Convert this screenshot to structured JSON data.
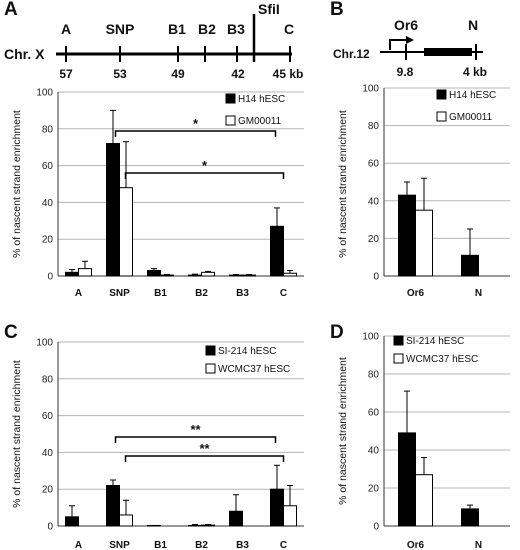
{
  "map_A": {
    "letter": "A",
    "chromosome": "Chr. X",
    "elements": [
      "A",
      "SNP",
      "B1",
      "B2",
      "B3",
      "SfiI",
      "C"
    ],
    "positions": [
      "57",
      "53",
      "49",
      "42",
      "45 kb"
    ]
  },
  "map_B": {
    "letter": "B",
    "chromosome": "Chr.12",
    "elements": [
      "Or6",
      "N"
    ],
    "positions": [
      "9.8",
      "4 kb"
    ]
  },
  "chart_data": [
    {
      "panel": "A",
      "type": "bar",
      "categories": [
        "A",
        "SNP",
        "B1",
        "B2",
        "B3",
        "C"
      ],
      "ylabel": "% of nascent strand enrichment",
      "ylim": [
        0,
        100
      ],
      "yticks": [
        0,
        20,
        40,
        60,
        80,
        100
      ],
      "grid": true,
      "legend_position": "top-right",
      "series": [
        {
          "name": "H14 hESC",
          "color": "#000000",
          "values": [
            2,
            72,
            3,
            0.5,
            0.5,
            27
          ],
          "errors": [
            1.5,
            18,
            1,
            0.5,
            0.3,
            10
          ]
        },
        {
          "name": "GM00011",
          "color": "#ffffff",
          "values": [
            4,
            48,
            0.5,
            2,
            0.5,
            1.5
          ],
          "errors": [
            4,
            25,
            0.3,
            0.5,
            0.3,
            1.5
          ]
        }
      ],
      "significance": [
        {
          "from": "SNP",
          "to": "C",
          "label": "*"
        },
        {
          "from": "SNP",
          "to": "C",
          "label": "*"
        }
      ]
    },
    {
      "panel": "B",
      "type": "bar",
      "categories": [
        "Or6",
        "N"
      ],
      "ylabel": "% of nascent strand enrichment",
      "ylim": [
        0,
        100
      ],
      "yticks": [
        0,
        20,
        40,
        60,
        80,
        100
      ],
      "grid": true,
      "legend_position": "top-right",
      "series": [
        {
          "name": "H14 hESC",
          "color": "#000000",
          "values": [
            43,
            11
          ],
          "errors": [
            7,
            14
          ]
        },
        {
          "name": "GM00011",
          "color": "#ffffff",
          "values": [
            35,
            0
          ],
          "errors": [
            17,
            0
          ]
        }
      ]
    },
    {
      "panel": "C",
      "type": "bar",
      "categories": [
        "A",
        "SNP",
        "B1",
        "B2",
        "B3",
        "C"
      ],
      "ylabel": "% of nascent strand enrichment",
      "ylim": [
        0,
        100
      ],
      "yticks": [
        0,
        20,
        40,
        60,
        80,
        100
      ],
      "grid": true,
      "legend_position": "top-right",
      "series": [
        {
          "name": "SI-214 hESC",
          "color": "#000000",
          "values": [
            5,
            22,
            0.3,
            0.3,
            8,
            20
          ],
          "errors": [
            6,
            3,
            0,
            0.5,
            9,
            13
          ]
        },
        {
          "name": "WCMC37 hESC",
          "color": "#ffffff",
          "values": [
            0,
            6,
            0,
            0.5,
            0,
            11
          ],
          "errors": [
            0,
            8,
            0,
            0.3,
            0,
            11
          ]
        }
      ],
      "significance": [
        {
          "from": "SNP",
          "to": "C",
          "label": "**"
        },
        {
          "from": "SNP",
          "to": "C",
          "label": "**"
        }
      ]
    },
    {
      "panel": "D",
      "type": "bar",
      "categories": [
        "Or6",
        "N"
      ],
      "ylabel": "% of nascent strand enrichment",
      "ylim": [
        0,
        100
      ],
      "yticks": [
        0,
        20,
        40,
        60,
        80,
        100
      ],
      "grid": true,
      "legend_position": "top-right",
      "series": [
        {
          "name": "SI-214 hESC",
          "color": "#000000",
          "values": [
            49,
            9
          ],
          "errors": [
            22,
            2
          ]
        },
        {
          "name": "WCMC37 hESC",
          "color": "#ffffff",
          "values": [
            27,
            0
          ],
          "errors": [
            9,
            0
          ]
        }
      ]
    }
  ]
}
